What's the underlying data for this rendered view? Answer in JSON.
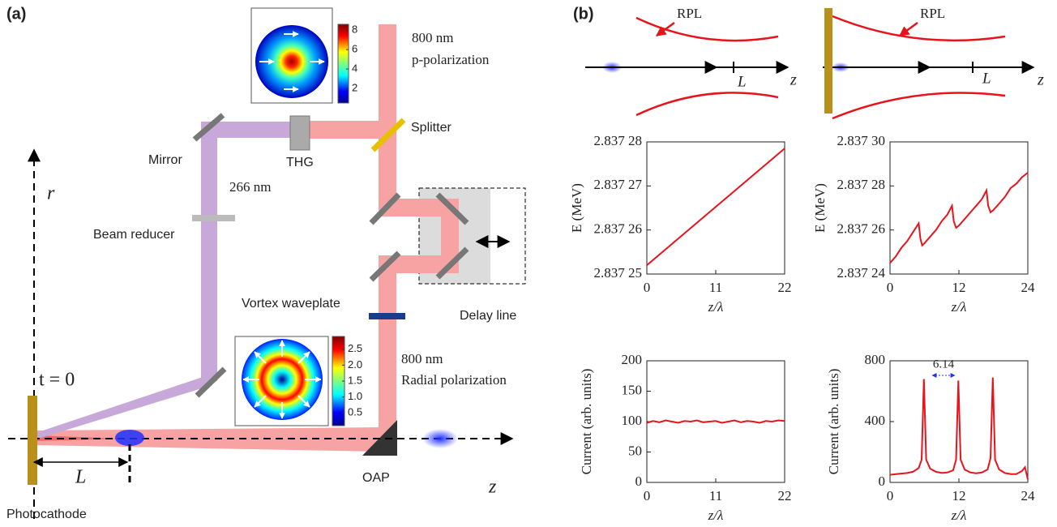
{
  "panel_a": {
    "label": "(a)",
    "texts": {
      "wavelength_top": "800 nm",
      "polarization_top": "p-polarization",
      "splitter": "Splitter",
      "thg": "THG",
      "mirror": "Mirror",
      "uv": "266 nm",
      "reducer": "Beam reducer",
      "waveplate": "Vortex waveplate",
      "delay": "Delay line",
      "wavelength_bottom": "800 nm",
      "polarization_bottom": "Radial polarization",
      "oap": "OAP",
      "cathode": "Photocathode",
      "time": "t = 0",
      "r_axis": "r",
      "z_axis": "z",
      "distance": "L"
    },
    "colorbar_top": {
      "ticks": [
        2,
        4,
        6,
        8
      ]
    },
    "colorbar_bottom": {
      "ticks": [
        0.5,
        {
          "value": 1.0,
          "label": "1.0"
        },
        1.5,
        {
          "value": 2.0,
          "label": "2.0"
        },
        2.5
      ]
    }
  },
  "panel_b": {
    "label": "(b)",
    "schematic_left": {
      "rpl": "RPL",
      "distance": "L",
      "axis": "z"
    },
    "schematic_right": {
      "rpl": "RPL",
      "distance": "L",
      "axis": "z"
    }
  },
  "chart_data": [
    {
      "type": "line",
      "xlabel": "z/λ",
      "ylabel": "E (MeV)",
      "color": "#e8141b",
      "x": [
        0,
        22
      ],
      "values": [
        2.837252,
        2.8372785
      ],
      "xlim": [
        0,
        22
      ],
      "xticks": [
        0,
        11,
        22
      ],
      "ylim": [
        2.83725,
        2.83728
      ],
      "yticks": [
        {
          "value": 2.83725,
          "label": "2.837 25"
        },
        {
          "value": 2.83726,
          "label": "2.837 26"
        },
        {
          "value": 2.83727,
          "label": "2.837 27"
        },
        {
          "value": 2.83728,
          "label": "2.837 28"
        }
      ]
    },
    {
      "type": "line",
      "xlabel": "z/λ",
      "ylabel": "E (MeV)",
      "color": "#e8141b",
      "x": [
        0,
        1,
        2,
        3,
        4,
        5,
        5.3,
        5.6,
        6,
        7,
        8,
        9,
        10,
        10.8,
        11.1,
        11.5,
        12,
        13,
        14,
        15,
        16,
        16.8,
        17.1,
        17.5,
        18,
        19,
        20,
        21,
        22,
        23,
        24
      ],
      "values": [
        2.837245,
        2.837248,
        2.837252,
        2.837255,
        2.837259,
        2.837263,
        2.837256,
        2.837253,
        2.837254,
        2.837257,
        2.83726,
        2.837264,
        2.837267,
        2.837271,
        2.837264,
        2.837261,
        2.837262,
        2.837265,
        2.837268,
        2.837271,
        2.837274,
        2.837278,
        2.837271,
        2.837268,
        2.837269,
        2.837272,
        2.837275,
        2.837279,
        2.837281,
        2.837284,
        2.837286
      ],
      "xlim": [
        0,
        24
      ],
      "xticks": [
        0,
        12,
        24
      ],
      "ylim": [
        2.83724,
        2.8373
      ],
      "yticks": [
        {
          "value": 2.83724,
          "label": "2.837 24"
        },
        {
          "value": 2.83726,
          "label": "2.837 26"
        },
        {
          "value": 2.83728,
          "label": "2.837 28"
        },
        {
          "value": 2.8373,
          "label": "2.837 30"
        }
      ]
    },
    {
      "type": "line",
      "xlabel": "z/λ",
      "ylabel": "Current (arb. units)",
      "color": "#e8141b",
      "x": [
        0,
        1,
        2,
        3,
        4,
        5,
        6,
        7,
        8,
        9,
        10,
        11,
        12,
        13,
        14,
        15,
        16,
        17,
        18,
        19,
        20,
        21,
        22
      ],
      "values": [
        98,
        101,
        99,
        102,
        100,
        98,
        101,
        100,
        102,
        99,
        100,
        101,
        98,
        100,
        102,
        99,
        101,
        100,
        98,
        101,
        100,
        102,
        101
      ],
      "xlim": [
        0,
        22
      ],
      "xticks": [
        0,
        11,
        22
      ],
      "ylim": [
        0,
        200
      ],
      "yticks": [
        0,
        50,
        100,
        150,
        200
      ]
    },
    {
      "type": "line",
      "xlabel": "z/λ",
      "ylabel": "Current (arb. units)",
      "color": "#e8141b",
      "x": [
        0,
        1,
        2,
        3,
        4,
        5,
        5.5,
        5.9,
        6.3,
        7,
        8,
        9,
        10,
        11,
        11.5,
        11.9,
        12.3,
        13,
        14,
        15,
        16,
        17,
        17.5,
        17.9,
        18.3,
        19,
        20,
        21,
        22,
        23,
        23.5,
        24
      ],
      "values": [
        50,
        55,
        58,
        62,
        70,
        95,
        150,
        680,
        150,
        90,
        70,
        62,
        65,
        80,
        150,
        670,
        150,
        85,
        65,
        60,
        65,
        85,
        160,
        690,
        150,
        85,
        62,
        55,
        55,
        75,
        100,
        20
      ],
      "xlim": [
        0,
        24
      ],
      "xticks": [
        0,
        12,
        24
      ],
      "ylim": [
        0,
        800
      ],
      "yticks": [
        0,
        400,
        800
      ],
      "annotation": "6.14"
    }
  ]
}
